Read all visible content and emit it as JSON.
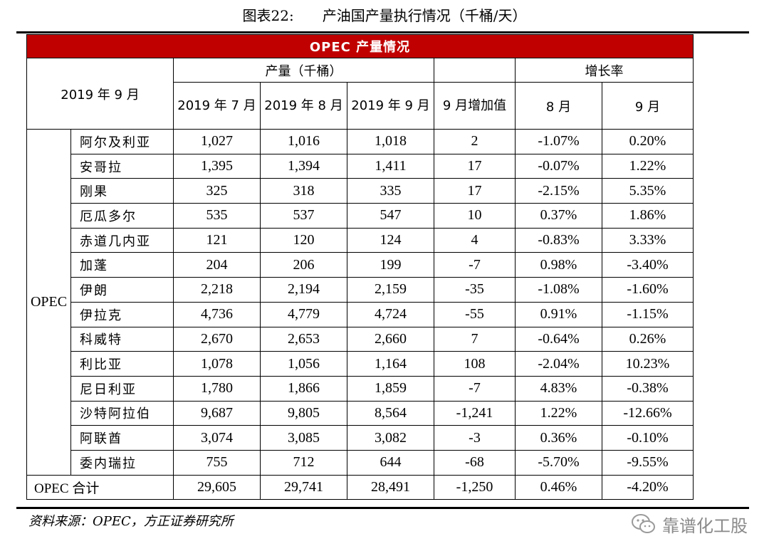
{
  "figure": {
    "label": "图表22:",
    "title": "产油国产量执行情况（千桶/天）"
  },
  "table": {
    "title": "OPEC 产量情况",
    "corner_label": "2019 年 9 月",
    "production_group_header": "产量（千桶）",
    "growth_group_header": "增长率",
    "columns": [
      "2019 年 7 月",
      "2019 年 8 月",
      "2019 年 9 月",
      "9 月增加值"
    ],
    "growth_columns": [
      "8 月",
      "9 月"
    ],
    "group_label": "OPEC",
    "rows": [
      {
        "name": "阿尔及利亚",
        "jul": "1,027",
        "aug": "1,016",
        "sep": "1,018",
        "delta": "2",
        "g_aug": "-1.07%",
        "g_sep": "0.20%"
      },
      {
        "name": "安哥拉",
        "jul": "1,395",
        "aug": "1,394",
        "sep": "1,411",
        "delta": "17",
        "g_aug": "-0.07%",
        "g_sep": "1.22%"
      },
      {
        "name": "刚果",
        "jul": "325",
        "aug": "318",
        "sep": "335",
        "delta": "17",
        "g_aug": "-2.15%",
        "g_sep": "5.35%"
      },
      {
        "name": "厄瓜多尔",
        "jul": "535",
        "aug": "537",
        "sep": "547",
        "delta": "10",
        "g_aug": "0.37%",
        "g_sep": "1.86%"
      },
      {
        "name": "赤道几内亚",
        "jul": "121",
        "aug": "120",
        "sep": "124",
        "delta": "4",
        "g_aug": "-0.83%",
        "g_sep": "3.33%"
      },
      {
        "name": "加蓬",
        "jul": "204",
        "aug": "206",
        "sep": "199",
        "delta": "-7",
        "g_aug": "0.98%",
        "g_sep": "-3.40%"
      },
      {
        "name": "伊朗",
        "jul": "2,218",
        "aug": "2,194",
        "sep": "2,159",
        "delta": "-35",
        "g_aug": "-1.08%",
        "g_sep": "-1.60%"
      },
      {
        "name": "伊拉克",
        "jul": "4,736",
        "aug": "4,779",
        "sep": "4,724",
        "delta": "-55",
        "g_aug": "0.91%",
        "g_sep": "-1.15%"
      },
      {
        "name": "科威特",
        "jul": "2,670",
        "aug": "2,653",
        "sep": "2,660",
        "delta": "7",
        "g_aug": "-0.64%",
        "g_sep": "0.26%"
      },
      {
        "name": "利比亚",
        "jul": "1,078",
        "aug": "1,056",
        "sep": "1,164",
        "delta": "108",
        "g_aug": "-2.04%",
        "g_sep": "10.23%"
      },
      {
        "name": "尼日利亚",
        "jul": "1,780",
        "aug": "1,866",
        "sep": "1,859",
        "delta": "-7",
        "g_aug": "4.83%",
        "g_sep": "-0.38%"
      },
      {
        "name": "沙特阿拉伯",
        "jul": "9,687",
        "aug": "9,805",
        "sep": "8,564",
        "delta": "-1,241",
        "g_aug": "1.22%",
        "g_sep": "-12.66%"
      },
      {
        "name": "阿联酋",
        "jul": "3,074",
        "aug": "3,085",
        "sep": "3,082",
        "delta": "-3",
        "g_aug": "0.36%",
        "g_sep": "-0.10%"
      },
      {
        "name": "委内瑞拉",
        "jul": "755",
        "aug": "712",
        "sep": "644",
        "delta": "-68",
        "g_aug": "-5.70%",
        "g_sep": "-9.55%"
      },
      {
        "name": "OPEC 合计",
        "jul": "29,605",
        "aug": "29,741",
        "sep": "28,491",
        "delta": "-1,250",
        "g_aug": "0.46%",
        "g_sep": "-4.20%"
      }
    ]
  },
  "source": "资料来源：OPEC，方正证券研究所",
  "watermark": {
    "text": "靠谱化工股",
    "icon": "wechat-icon"
  },
  "colors": {
    "title_bar": "#c00000",
    "watermark": "#8a8a8a"
  }
}
